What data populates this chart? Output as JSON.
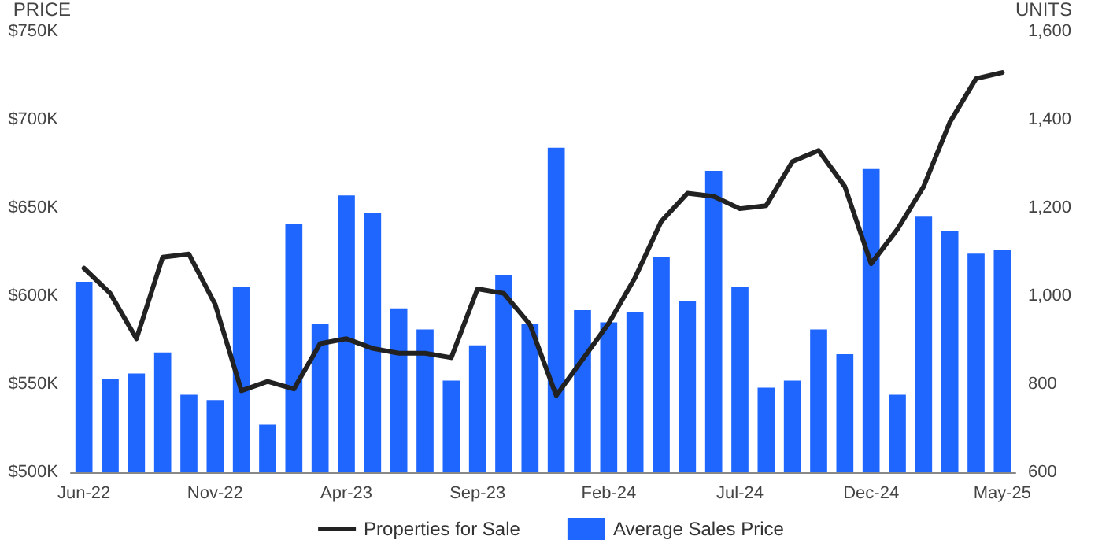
{
  "chart_data": {
    "type": "bar",
    "ylabel": "PRICE",
    "y2label": "UNITS",
    "categories": [
      "Jun-22",
      null,
      null,
      null,
      null,
      "Nov-22",
      null,
      null,
      null,
      null,
      "Apr-23",
      null,
      null,
      null,
      null,
      "Sep-23",
      null,
      null,
      null,
      null,
      "Feb-24",
      null,
      null,
      null,
      null,
      "Jul-24",
      null,
      null,
      null,
      null,
      "Dec-24",
      null,
      null,
      null,
      null,
      "May-25"
    ],
    "series": [
      {
        "name": "Properties for Sale",
        "type": "line",
        "axis": "y2",
        "color": "#222222",
        "values": [
          1063,
          1006,
          903,
          1088,
          1095,
          981,
          785,
          806,
          789,
          892,
          903,
          881,
          870,
          870,
          860,
          1016,
          1006,
          935,
          774,
          856,
          938,
          1041,
          1169,
          1233,
          1226,
          1198,
          1205,
          1305,
          1330,
          1248,
          1073,
          1151,
          1248,
          1394,
          1493,
          1507
        ]
      },
      {
        "name": "Average Sales Price",
        "color": "#1f66ff",
        "values": [
          608,
          553,
          556,
          568,
          544,
          541,
          605,
          527,
          641,
          584,
          657,
          647,
          593,
          581,
          552,
          572,
          612,
          584,
          684,
          592,
          585,
          591,
          622,
          597,
          671,
          605,
          548,
          552,
          581,
          567,
          672,
          544,
          645,
          637,
          624,
          626
        ]
      }
    ],
    "ylim": [
      500,
      750
    ],
    "yticks": [
      {
        "value": 500,
        "label": "$500K"
      },
      {
        "value": 550,
        "label": "$550K"
      },
      {
        "value": 600,
        "label": "$600K"
      },
      {
        "value": 650,
        "label": "$650K"
      },
      {
        "value": 700,
        "label": "$700K"
      },
      {
        "value": 750,
        "label": "$750K"
      }
    ],
    "y2lim": [
      600,
      1600
    ],
    "y2ticks": [
      {
        "value": 600,
        "label": "600"
      },
      {
        "value": 800,
        "label": "800"
      },
      {
        "value": 1000,
        "label": "1,000"
      },
      {
        "value": 1200,
        "label": "1,200"
      },
      {
        "value": 1400,
        "label": "1,400"
      },
      {
        "value": 1600,
        "label": "1,600"
      }
    ],
    "legend": "bottom",
    "grid": false,
    "marker": "none",
    "line_style": "solid"
  }
}
